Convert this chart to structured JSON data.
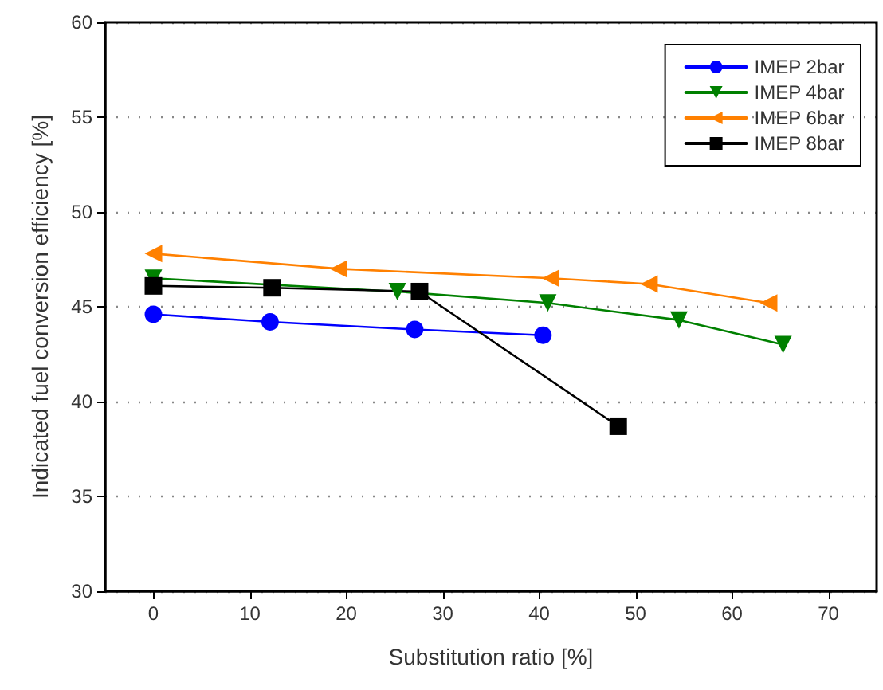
{
  "chart_data": {
    "type": "line",
    "xlabel": "Substitution ratio [%]",
    "ylabel": "Indicated fuel conversion efficiency [%]",
    "xlim": [
      -5,
      75
    ],
    "xticks": [
      0,
      10,
      20,
      30,
      40,
      50,
      60,
      70
    ],
    "ylim": [
      30,
      60
    ],
    "yticks": [
      30,
      35,
      40,
      45,
      50,
      55,
      60
    ],
    "grid": "y",
    "legend": "top right",
    "line_style": "solid",
    "series": [
      {
        "name": "IMEP 2bar",
        "color": "#0000ff",
        "marker": "circle",
        "x": [
          0,
          12.1,
          27.1,
          40.4
        ],
        "values": [
          44.6,
          44.2,
          43.8,
          43.5
        ]
      },
      {
        "name": "IMEP 4bar",
        "color": "#008000",
        "marker": "triangle-down",
        "x": [
          0,
          25.3,
          40.9,
          54.5,
          65.3
        ],
        "values": [
          46.5,
          45.8,
          45.2,
          44.3,
          43.0
        ]
      },
      {
        "name": "IMEP 6bar",
        "color": "#ff8000",
        "marker": "triangle-left",
        "x": [
          0,
          19.2,
          41.2,
          51.4,
          63.8
        ],
        "values": [
          47.8,
          47.0,
          46.5,
          46.2,
          45.2
        ]
      },
      {
        "name": "IMEP 8bar",
        "color": "#000000",
        "marker": "square",
        "x": [
          0,
          12.3,
          27.6,
          48.2
        ],
        "values": [
          46.1,
          46.0,
          45.8,
          38.7
        ]
      }
    ]
  }
}
